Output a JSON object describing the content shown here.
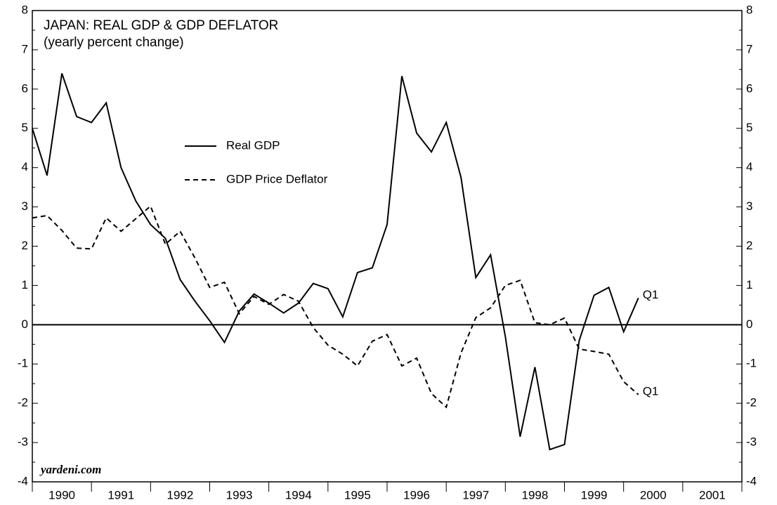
{
  "chart_data": {
    "type": "line",
    "title": "JAPAN: REAL GDP & GDP DEFLATOR",
    "subtitle": "(yearly percent change)",
    "x": [
      1990,
      1990.25,
      1990.5,
      1990.75,
      1991,
      1991.25,
      1991.5,
      1991.75,
      1992,
      1992.25,
      1992.5,
      1992.75,
      1993,
      1993.25,
      1993.5,
      1993.75,
      1994,
      1994.25,
      1994.5,
      1994.75,
      1995,
      1995.25,
      1995.5,
      1995.75,
      1996,
      1996.25,
      1996.5,
      1996.75,
      1997,
      1997.25,
      1997.5,
      1997.75,
      1998,
      1998.25,
      1998.5,
      1998.75,
      1999,
      1999.25,
      1999.5,
      1999.75,
      2000,
      2000.25
    ],
    "series": [
      {
        "name": "Real GDP",
        "color": "#000000",
        "dash": "solid",
        "values": [
          5.0,
          3.8,
          6.4,
          5.3,
          5.15,
          5.65,
          4.0,
          3.15,
          2.55,
          2.2,
          1.15,
          0.6,
          0.1,
          -0.45,
          0.35,
          0.78,
          0.55,
          0.3,
          0.55,
          1.05,
          0.92,
          0.2,
          1.33,
          1.45,
          2.55,
          6.33,
          4.88,
          4.4,
          5.15,
          3.75,
          1.2,
          1.78,
          -0.3,
          -2.85,
          -1.08,
          -3.18,
          -3.05,
          -0.4,
          0.75,
          0.95,
          -0.18,
          0.68
        ]
      },
      {
        "name": "GDP Price Deflator",
        "color": "#000000",
        "dash": "dashed",
        "values": [
          2.72,
          2.78,
          2.4,
          1.95,
          1.93,
          2.72,
          2.38,
          2.7,
          3.02,
          2.05,
          2.38,
          1.7,
          0.95,
          1.08,
          0.28,
          0.72,
          0.52,
          0.77,
          0.6,
          -0.07,
          -0.52,
          -0.75,
          -1.05,
          -0.42,
          -0.25,
          -1.05,
          -0.85,
          -1.75,
          -2.1,
          -0.72,
          0.18,
          0.43,
          1.0,
          1.13,
          0.05,
          0.0,
          0.17,
          -0.62,
          -0.68,
          -0.75,
          -1.45,
          -1.78
        ]
      }
    ],
    "categories": [
      "1990",
      "1991",
      "1992",
      "1993",
      "1994",
      "1995",
      "1996",
      "1997",
      "1998",
      "1999",
      "2000",
      "2001"
    ],
    "xlim": [
      1990,
      2002
    ],
    "xticks": [
      1990,
      1991,
      1992,
      1993,
      1994,
      1995,
      1996,
      1997,
      1998,
      1999,
      2000,
      2001,
      2002
    ],
    "ylim": [
      -4,
      8
    ],
    "yticks": [
      -4,
      -3,
      -2,
      -1,
      0,
      1,
      2,
      3,
      4,
      5,
      6,
      7,
      8
    ],
    "y2lim": [
      -4,
      8
    ],
    "y2ticks": [
      -4,
      -3,
      -2,
      -1,
      0,
      1,
      2,
      3,
      4,
      5,
      6,
      7,
      8
    ],
    "annotations": [
      "Q1",
      "Q1"
    ],
    "source": "yardeni.com"
  }
}
